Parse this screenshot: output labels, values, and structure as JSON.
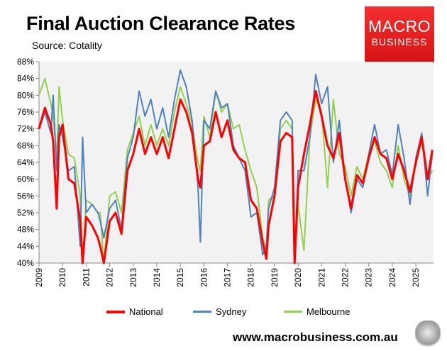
{
  "header": {
    "title": "Final Auction Clearance Rates",
    "source": "Source: Cotality",
    "logo_line1": "MACRO",
    "logo_line2": "BUSINESS"
  },
  "footer": {
    "url": "www.macrobusiness.com.au"
  },
  "chart_data": {
    "type": "line",
    "title": "Final Auction Clearance Rates",
    "ylim": [
      40,
      88
    ],
    "xlim": [
      2009,
      2025.75
    ],
    "y_ticks": [
      "40%",
      "44%",
      "48%",
      "52%",
      "56%",
      "60%",
      "64%",
      "68%",
      "72%",
      "76%",
      "80%",
      "84%",
      "88%"
    ],
    "x_ticks": [
      "2009",
      "2010",
      "2011",
      "2012",
      "2013",
      "2014",
      "2015",
      "2016",
      "2017",
      "2018",
      "2019",
      "2020",
      "2021",
      "2022",
      "2023",
      "2024",
      "2025"
    ],
    "grid": false,
    "legend": "bottom",
    "x": [
      2009.0,
      2009.25,
      2009.5,
      2009.6,
      2009.75,
      2009.85,
      2010.0,
      2010.25,
      2010.5,
      2010.75,
      2010.85,
      2011.0,
      2011.25,
      2011.5,
      2011.6,
      2011.75,
      2012.0,
      2012.25,
      2012.5,
      2012.75,
      2013.0,
      2013.25,
      2013.5,
      2013.75,
      2014.0,
      2014.25,
      2014.5,
      2014.75,
      2015.0,
      2015.25,
      2015.5,
      2015.75,
      2015.85,
      2016.0,
      2016.25,
      2016.5,
      2016.75,
      2017.0,
      2017.25,
      2017.5,
      2017.75,
      2018.0,
      2018.25,
      2018.5,
      2018.65,
      2018.75,
      2019.0,
      2019.25,
      2019.5,
      2019.75,
      2019.85,
      2020.0,
      2020.25,
      2020.5,
      2020.75,
      2021.0,
      2021.25,
      2021.5,
      2021.75,
      2022.0,
      2022.25,
      2022.5,
      2022.75,
      2023.0,
      2023.25,
      2023.5,
      2023.75,
      2024.0,
      2024.25,
      2024.5,
      2024.75,
      2025.0,
      2025.25,
      2025.5,
      2025.7
    ],
    "series": [
      {
        "name": "National",
        "color": "#ff0000",
        "values": [
          72,
          77,
          73,
          69,
          53,
          70,
          73,
          60,
          59,
          50,
          40,
          51,
          49,
          46,
          44,
          40,
          50,
          52,
          47,
          62,
          66,
          72,
          66,
          70,
          66,
          70,
          65,
          72,
          79,
          76,
          71,
          60,
          58,
          68,
          69,
          76,
          70,
          74,
          67,
          65,
          64,
          55,
          53,
          45,
          41,
          49,
          56,
          69,
          71,
          70,
          40,
          58,
          66,
          73,
          81,
          75,
          68,
          65,
          71,
          60,
          53,
          61,
          59,
          65,
          70,
          66,
          65,
          60,
          66,
          62,
          57,
          64,
          70,
          60,
          67
        ]
      },
      {
        "name": "Sydney",
        "color": "#4f81bd",
        "values": [
          72,
          76,
          71,
          80,
          62,
          73,
          70,
          62,
          63,
          44,
          70,
          52,
          54,
          52,
          50,
          46,
          53,
          55,
          48,
          65,
          70,
          81,
          75,
          79,
          72,
          77,
          70,
          79,
          86,
          82,
          74,
          58,
          45,
          74,
          72,
          81,
          77,
          78,
          68,
          65,
          62,
          51,
          52,
          42,
          44,
          53,
          58,
          74,
          76,
          74,
          40,
          62,
          62,
          70,
          85,
          78,
          82,
          64,
          74,
          60,
          52,
          60,
          58,
          66,
          73,
          66,
          67,
          61,
          73,
          65,
          54,
          65,
          71,
          56,
          66
        ]
      },
      {
        "name": "Melbourne",
        "color": "#92d050",
        "values": [
          80,
          84,
          78,
          75,
          65,
          82,
          74,
          66,
          65,
          56,
          40,
          55,
          54,
          52,
          52,
          40,
          56,
          57,
          52,
          67,
          71,
          75,
          68,
          73,
          68,
          72,
          68,
          76,
          82,
          78,
          73,
          64,
          62,
          75,
          70,
          81,
          76,
          78,
          72,
          73,
          67,
          62,
          58,
          46,
          43,
          55,
          56,
          72,
          74,
          72,
          40,
          54,
          43,
          70,
          79,
          76,
          58,
          79,
          66,
          63,
          56,
          63,
          60,
          66,
          69,
          64,
          62,
          58,
          68,
          60,
          56,
          64,
          69,
          60,
          62
        ]
      }
    ]
  }
}
